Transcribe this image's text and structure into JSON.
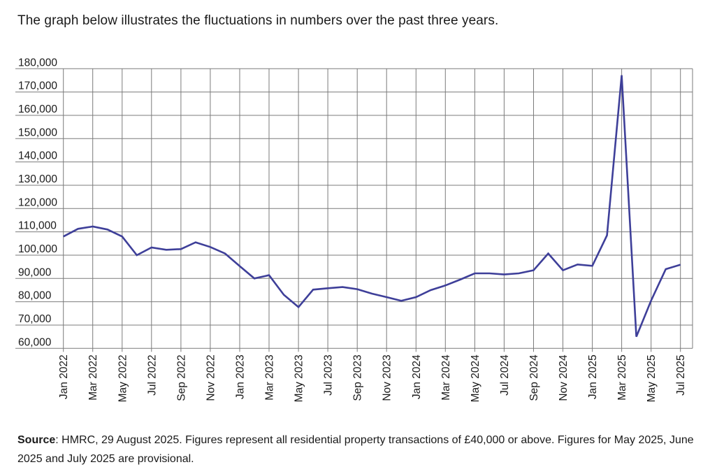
{
  "title": "The graph below illustrates the fluctuations in numbers over the past three years.",
  "source": {
    "label": "Source",
    "text": ": HMRC, 29 August 2025. Figures represent all residential property transactions of £40,000 or above. Figures for May 2025, June 2025 and July 2025 are provisional."
  },
  "chart_data": {
    "type": "line",
    "title": "",
    "xlabel": "",
    "ylabel": "",
    "grid": true,
    "legend": "none",
    "ylim": [
      60000,
      180000
    ],
    "y_tick_step": 10000,
    "y_tick_labels": [
      "60,000",
      "70,000",
      "80,000",
      "90,000",
      "100,000",
      "110,000",
      "120,000",
      "130,000",
      "140,000",
      "150,000",
      "160,000",
      "170,000",
      "180,000"
    ],
    "x": [
      "Jan 2022",
      "Feb 2022",
      "Mar 2022",
      "Apr 2022",
      "May 2022",
      "Jun 2022",
      "Jul 2022",
      "Aug 2022",
      "Sep 2022",
      "Oct 2022",
      "Nov 2022",
      "Dec 2022",
      "Jan 2023",
      "Feb 2023",
      "Mar 2023",
      "Apr 2023",
      "May 2023",
      "Jun 2023",
      "Jul 2023",
      "Aug 2023",
      "Sep 2023",
      "Oct 2023",
      "Nov 2023",
      "Dec 2023",
      "Jan 2024",
      "Feb 2024",
      "Mar 2024",
      "Apr 2024",
      "May 2024",
      "Jun 2024",
      "Jul 2024",
      "Aug 2024",
      "Sep 2024",
      "Oct 2024",
      "Nov 2024",
      "Dec 2024",
      "Jan 2025",
      "Feb 2025",
      "Mar 2025",
      "Apr 2025",
      "May 2025",
      "Jun 2025",
      "Jul 2025"
    ],
    "x_tick_labels": [
      "Jan 2022",
      "Mar 2022",
      "May 2022",
      "Jul 2022",
      "Sep 2022",
      "Nov 2022",
      "Jan 2023",
      "Mar 2023",
      "May 2023",
      "Jul 2023",
      "Sep 2023",
      "Nov 2023",
      "Jan 2024",
      "Mar 2024",
      "May 2024",
      "Jul 2024",
      "Sep 2024",
      "Nov 2024",
      "Jan 2025",
      "Mar 2025",
      "May 2025",
      "Jul 2025"
    ],
    "series": [
      {
        "name": "Residential property transactions",
        "values": [
          108000,
          111300,
          112300,
          111000,
          108000,
          100000,
          103300,
          102300,
          102600,
          105500,
          103500,
          100700,
          95300,
          90000,
          91400,
          83000,
          77700,
          85200,
          85800,
          86300,
          85400,
          83500,
          82000,
          80400,
          82000,
          85000,
          87000,
          89500,
          92200,
          92200,
          91700,
          92200,
          93500,
          100700,
          93500,
          96000,
          95400,
          108500,
          177200,
          65000,
          80500,
          94000,
          95900
        ]
      }
    ],
    "line_color": "#3e3f99",
    "grid_color": "#7b7b7b",
    "label_color": "#1a1a1a"
  }
}
